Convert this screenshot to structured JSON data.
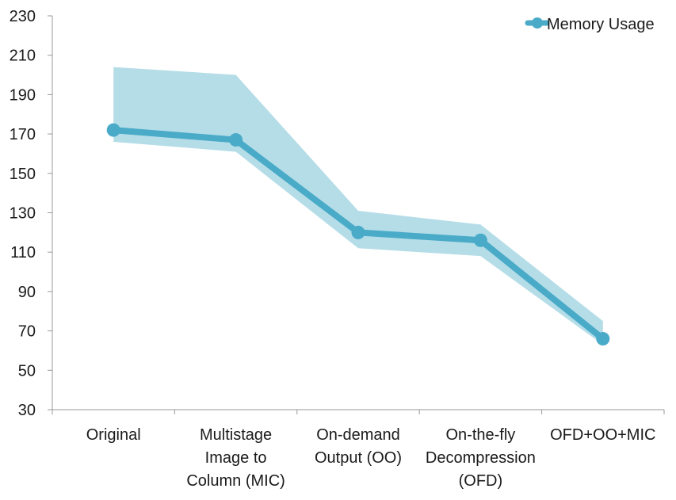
{
  "chart_data": {
    "type": "line",
    "title": "",
    "xlabel": "",
    "ylabel": "",
    "categories": [
      [
        "Original"
      ],
      [
        "Multistage",
        "Image to",
        "Column (MIC)"
      ],
      [
        "On-demand",
        "Output (OO)"
      ],
      [
        "On-the-fly",
        "Decompression",
        "(OFD)"
      ],
      [
        "OFD+OO+MIC"
      ]
    ],
    "series": [
      {
        "name": "Memory Usage",
        "values": [
          172,
          167,
          120,
          116,
          66
        ],
        "band_upper": [
          204,
          200,
          131,
          124,
          75
        ],
        "band_lower": [
          166,
          161,
          112,
          108,
          63
        ],
        "color": "#4aabc8",
        "band_color": "#b5dde8"
      }
    ],
    "ylim": [
      30,
      230
    ],
    "yticks": [
      "30",
      "50",
      "70",
      "90",
      "110",
      "130",
      "150",
      "170",
      "190",
      "210",
      "230"
    ],
    "grid": false,
    "legend": "top-right"
  }
}
